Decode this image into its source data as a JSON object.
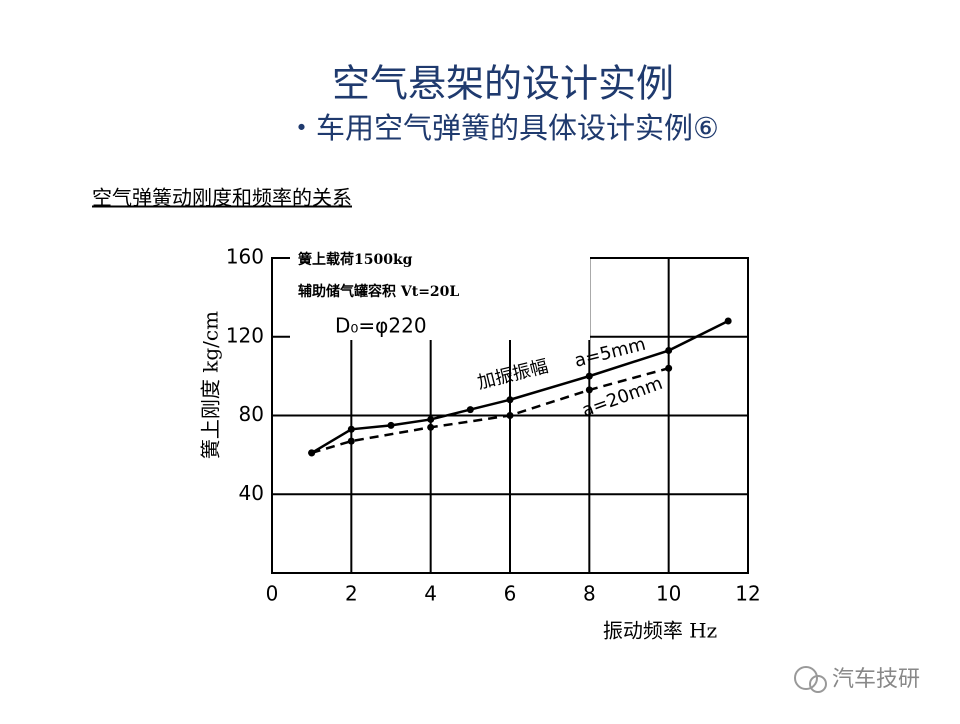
{
  "slide": {
    "title": "空气悬架的设计实例",
    "subtitle": "・车用空气弹簧的具体设计实例⑥",
    "heading": "空气弹簧动刚度和频率的关系",
    "watermark": "汽车技研"
  },
  "chart_data": {
    "type": "line",
    "x_label": "振动频率  Hz",
    "y_label": "簧上刚度  kg/cm",
    "annotations": [
      "簧上载荷1500kg",
      "辅助储气罐容积  Vt=20L",
      "D₀=φ220",
      "加振振幅"
    ],
    "xlim": [
      0,
      12
    ],
    "xticks": [
      0,
      2,
      4,
      6,
      8,
      10,
      12
    ],
    "ylim": [
      0,
      160
    ],
    "yticks": [
      40,
      80,
      120,
      160
    ],
    "grid": true,
    "series": [
      {
        "name": "a=5mm",
        "color": "#000000",
        "dash": false,
        "x": [
          1,
          2,
          3,
          4,
          5,
          6,
          8,
          10,
          11.5
        ],
        "values": [
          61,
          73,
          75,
          78,
          83,
          88,
          100,
          113,
          128
        ]
      },
      {
        "name": "a=20mm",
        "color": "#000000",
        "dash": true,
        "x": [
          1,
          2,
          4,
          6,
          8,
          10
        ],
        "values": [
          61,
          67,
          74,
          80,
          93,
          104
        ]
      }
    ]
  }
}
